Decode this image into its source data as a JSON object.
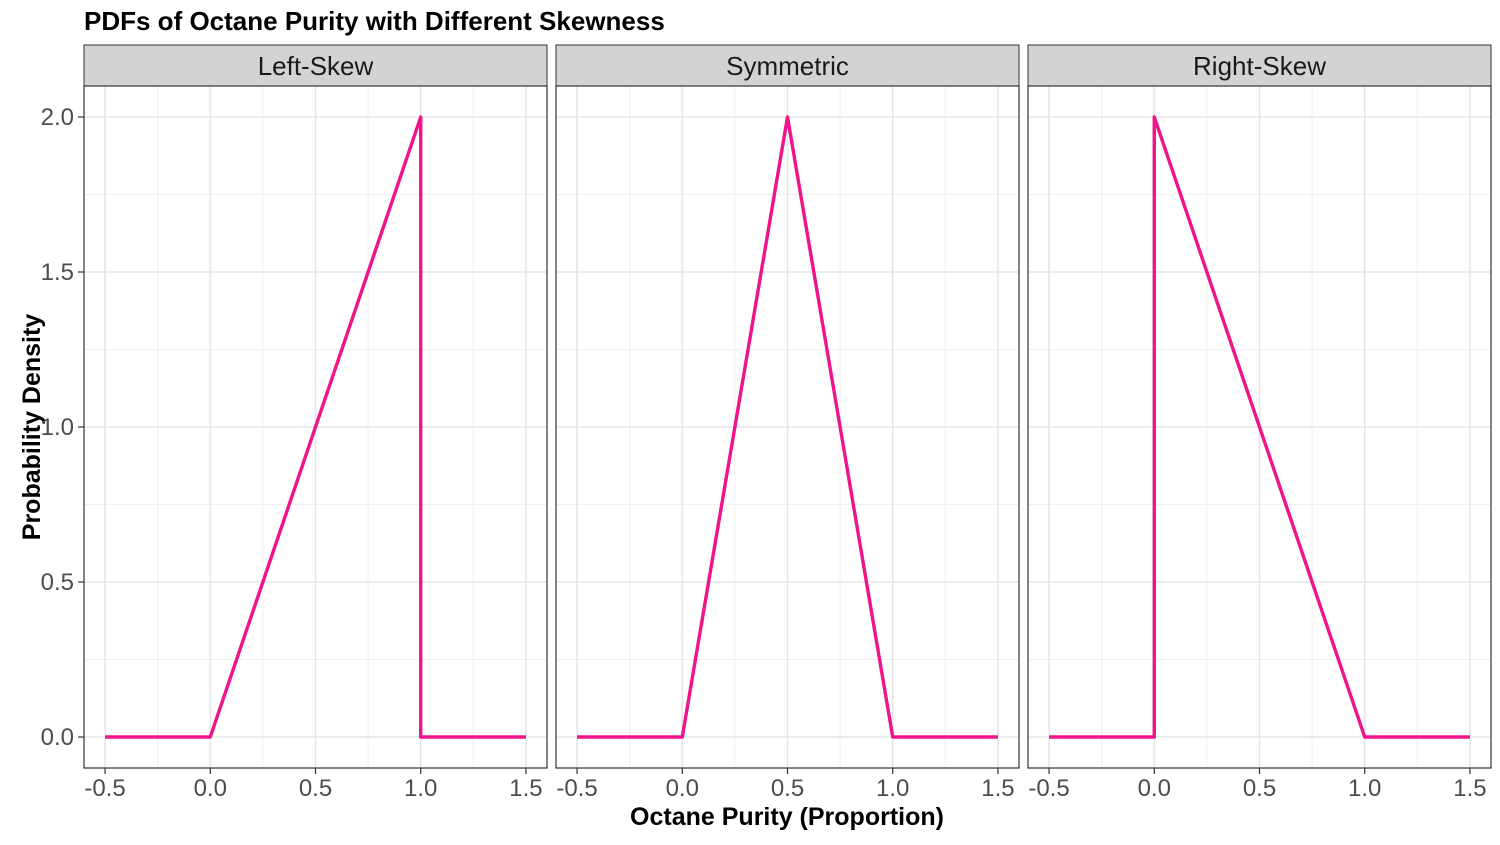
{
  "chart_data": {
    "type": "line",
    "title": "PDFs of Octane Purity with Different Skewness",
    "xlabel": "Octane Purity (Proportion)",
    "ylabel": "Probability Density",
    "xlim": [
      -0.6,
      1.6
    ],
    "ylim": [
      -0.1,
      2.1
    ],
    "x_ticks": [
      -0.5,
      0.0,
      0.5,
      1.0,
      1.5
    ],
    "x_tick_labels": [
      "-0.5",
      "0.0",
      "0.5",
      "1.0",
      "1.5"
    ],
    "y_ticks": [
      0.0,
      0.5,
      1.0,
      1.5,
      2.0
    ],
    "y_tick_labels": [
      "0.0",
      "0.5",
      "1.0",
      "1.5",
      "2.0"
    ],
    "grid": true,
    "line_color": "#F0148C",
    "panels": [
      {
        "label": "Left-Skew",
        "x": [
          -0.5,
          0.0,
          1.0,
          1.0,
          1.5
        ],
        "y": [
          0.0,
          0.0,
          2.0,
          0.0,
          0.0
        ]
      },
      {
        "label": "Symmetric",
        "x": [
          -0.5,
          0.0,
          0.5,
          1.0,
          1.5
        ],
        "y": [
          0.0,
          0.0,
          2.0,
          0.0,
          0.0
        ]
      },
      {
        "label": "Right-Skew",
        "x": [
          -0.5,
          0.0,
          0.0,
          1.0,
          1.5
        ],
        "y": [
          0.0,
          0.0,
          2.0,
          0.0,
          0.0
        ]
      }
    ]
  }
}
